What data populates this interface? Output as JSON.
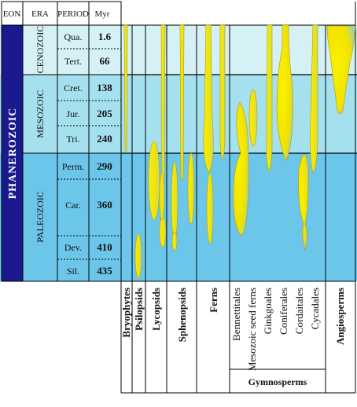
{
  "header": {
    "eon": "EON",
    "era": "ERA",
    "period": "PERIOD",
    "myr": "Myr"
  },
  "eon": {
    "name": "PHANEROZOIC",
    "color": "#1a1a8e"
  },
  "eras": [
    {
      "name": "CENOZOIC",
      "color": "#d6f1f6"
    },
    {
      "name": "MESOZOIC",
      "color": "#a5e0ee"
    },
    {
      "name": "PALEOZOIC",
      "color": "#6cc6ea"
    }
  ],
  "periods": [
    {
      "name": "Qua.",
      "myr": "1.6"
    },
    {
      "name": "Tert.",
      "myr": "66"
    },
    {
      "name": "Cret.",
      "myr": "138"
    },
    {
      "name": "Jur.",
      "myr": "205"
    },
    {
      "name": "Tri.",
      "myr": "240"
    },
    {
      "name": "Perm.",
      "myr": "290"
    },
    {
      "name": "Car.",
      "myr": "360"
    },
    {
      "name": "Dev.",
      "myr": "410"
    },
    {
      "name": "Sil.",
      "myr": "435"
    }
  ],
  "groups": [
    {
      "label": "Bryophytes",
      "bold": true
    },
    {
      "label": "Psilopsids",
      "bold": true
    },
    {
      "label": "Lycopsids",
      "bold": true
    },
    {
      "label": "Sphenopsids",
      "bold": true
    },
    {
      "label": "Ferns",
      "bold": true
    },
    {
      "label": "Bennettitales",
      "bold": false
    },
    {
      "label": "Mesozoic seed ferns",
      "bold": false
    },
    {
      "label": "Ginkgoales",
      "bold": false
    },
    {
      "label": "Coniferales",
      "bold": false
    },
    {
      "label": "Cordaitales",
      "bold": false
    },
    {
      "label": "Cycadales",
      "bold": false
    },
    {
      "label": "Angiosperms",
      "bold": true
    }
  ],
  "gymnosperms_label": "Gymnosperms",
  "colors": {
    "spindle": "#f2e600",
    "spindle_edge": "#b89a00",
    "grid": "#000000"
  }
}
